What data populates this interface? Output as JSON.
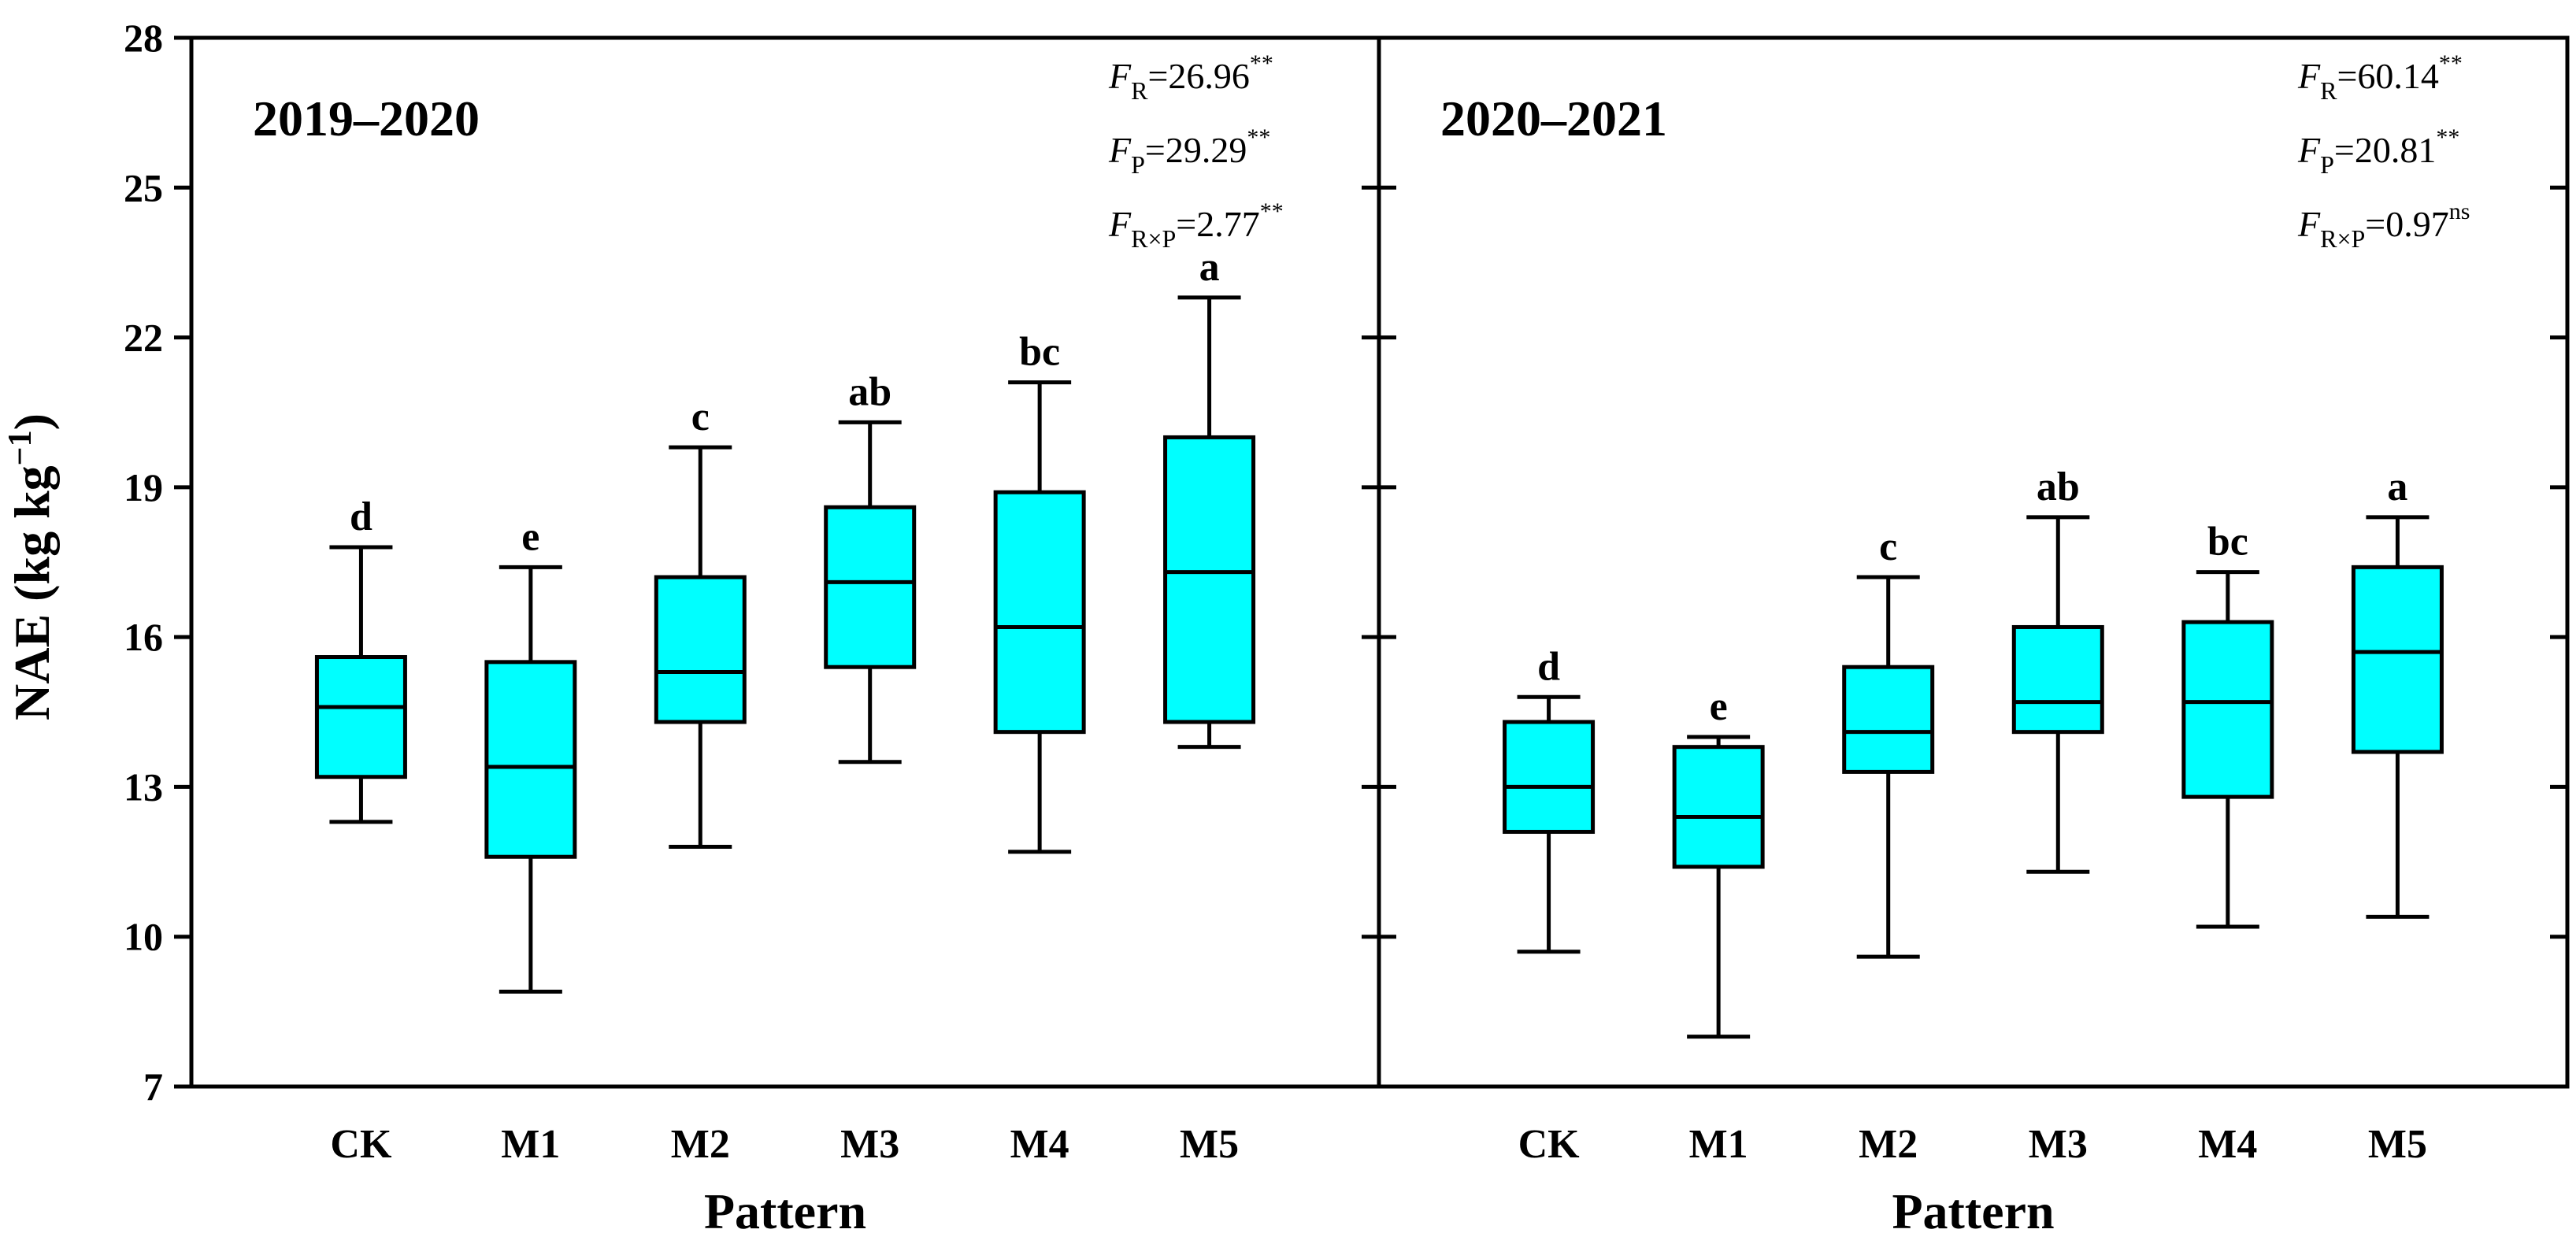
{
  "chart_data": {
    "type": "boxplot",
    "ylabel": "NAE (kg kg",
    "ylabel_sup": "−1",
    "ylabel_close": ")",
    "xlabel": "Pattern",
    "ylim": [
      7,
      28
    ],
    "yticks": [
      7,
      10,
      13,
      16,
      19,
      22,
      25,
      28
    ],
    "categories": [
      "CK",
      "M1",
      "M2",
      "M3",
      "M4",
      "M5"
    ],
    "box_color": "#00FFFF",
    "panels": [
      {
        "title": "2019–2020",
        "stats": [
          {
            "F": "F",
            "sub": "R",
            "eq": "=26.96",
            "sig": "**"
          },
          {
            "F": "F",
            "sub": "P",
            "eq": "=29.29",
            "sig": "**"
          },
          {
            "F": "F",
            "sub": "R×P",
            "eq": "=2.77",
            "sig": "**"
          }
        ],
        "boxes": [
          {
            "category": "CK",
            "min": 12.3,
            "q1": 13.2,
            "median": 14.6,
            "q3": 15.6,
            "max": 17.8,
            "letter": "d"
          },
          {
            "category": "M1",
            "min": 8.9,
            "q1": 11.6,
            "median": 13.4,
            "q3": 15.5,
            "max": 17.4,
            "letter": "e"
          },
          {
            "category": "M2",
            "min": 11.8,
            "q1": 14.3,
            "median": 15.3,
            "q3": 17.2,
            "max": 19.8,
            "letter": "c"
          },
          {
            "category": "M3",
            "min": 13.5,
            "q1": 15.4,
            "median": 17.1,
            "q3": 18.6,
            "max": 20.3,
            "letter": "ab"
          },
          {
            "category": "M4",
            "min": 11.7,
            "q1": 14.1,
            "median": 16.2,
            "q3": 18.9,
            "max": 21.1,
            "letter": "bc"
          },
          {
            "category": "M5",
            "min": 13.8,
            "q1": 14.3,
            "median": 17.3,
            "q3": 20.0,
            "max": 22.8,
            "letter": "a"
          }
        ]
      },
      {
        "title": "2020–2021",
        "stats": [
          {
            "F": "F",
            "sub": "R",
            "eq": "=60.14",
            "sig": "**"
          },
          {
            "F": "F",
            "sub": "P",
            "eq": "=20.81",
            "sig": "**"
          },
          {
            "F": "F",
            "sub": "R×P",
            "eq": "=0.97",
            "sig": "ns"
          }
        ],
        "boxes": [
          {
            "category": "CK",
            "min": 9.7,
            "q1": 12.1,
            "median": 13.0,
            "q3": 14.3,
            "max": 14.8,
            "letter": "d"
          },
          {
            "category": "M1",
            "min": 8.0,
            "q1": 11.4,
            "median": 12.4,
            "q3": 13.8,
            "max": 14.0,
            "letter": "e"
          },
          {
            "category": "M2",
            "min": 9.6,
            "q1": 13.3,
            "median": 14.1,
            "q3": 15.4,
            "max": 17.2,
            "letter": "c"
          },
          {
            "category": "M3",
            "min": 11.3,
            "q1": 14.1,
            "median": 14.7,
            "q3": 16.2,
            "max": 18.4,
            "letter": "ab"
          },
          {
            "category": "M4",
            "min": 10.2,
            "q1": 12.8,
            "median": 14.7,
            "q3": 16.3,
            "max": 17.3,
            "letter": "bc"
          },
          {
            "category": "M5",
            "min": 10.4,
            "q1": 13.7,
            "median": 15.7,
            "q3": 17.4,
            "max": 18.4,
            "letter": "a"
          }
        ]
      }
    ]
  }
}
